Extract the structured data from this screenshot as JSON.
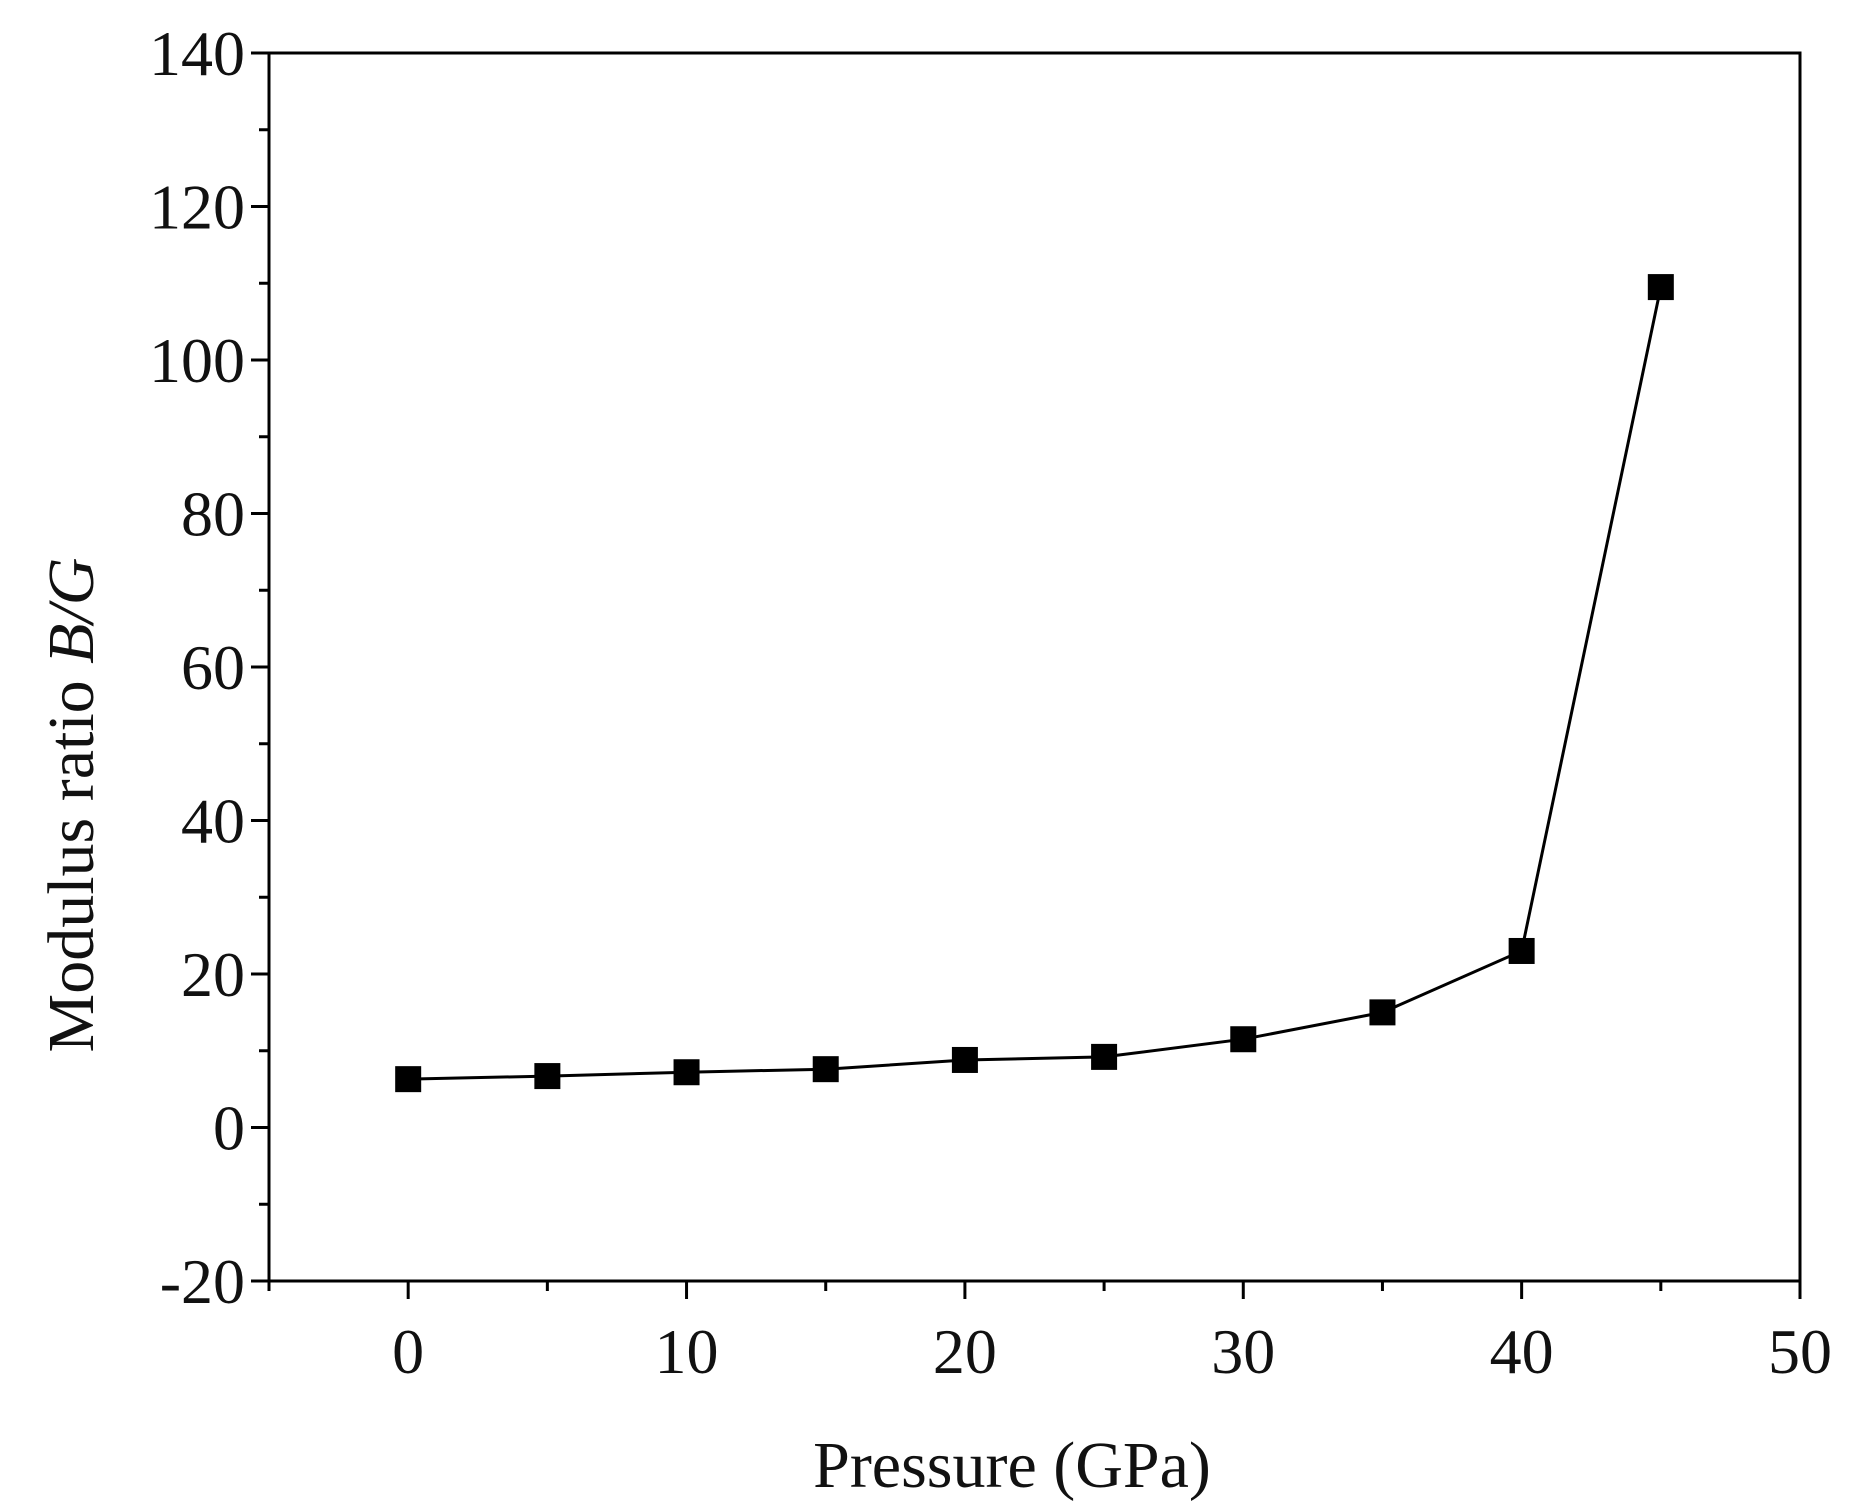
{
  "chart_data": {
    "type": "line",
    "title": "",
    "xlabel": "Pressure (GPa)",
    "ylabel": "Modulus ratio",
    "ylabel_symbol": "B/G",
    "xlim": [
      -5,
      50
    ],
    "ylim": [
      -20,
      140
    ],
    "x_ticks": [
      0,
      10,
      20,
      30,
      40,
      50
    ],
    "x_tick_labels": [
      "0",
      "10",
      "20",
      "30",
      "40",
      "50"
    ],
    "y_ticks": [
      -20,
      0,
      20,
      40,
      60,
      80,
      100,
      120,
      140
    ],
    "y_tick_labels": [
      "-20",
      "0",
      "20",
      "40",
      "60",
      "80",
      "100",
      "120",
      "140"
    ],
    "grid": false,
    "series": [
      {
        "name": "B/G",
        "marker": "square",
        "color": "#000000",
        "x": [
          0,
          5,
          10,
          15,
          20,
          25,
          30,
          35,
          40,
          45
        ],
        "y": [
          6.3,
          6.7,
          7.2,
          7.6,
          8.8,
          9.2,
          11.5,
          15.0,
          23.0,
          109.5
        ]
      }
    ]
  }
}
